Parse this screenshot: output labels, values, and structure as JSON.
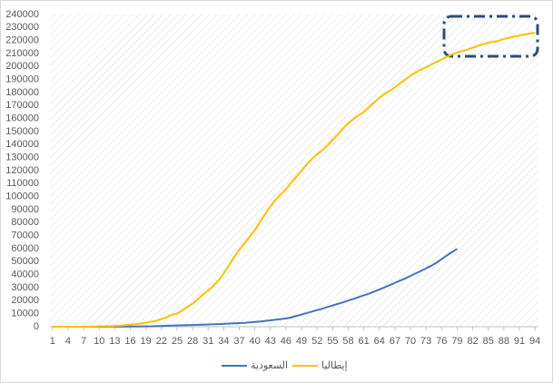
{
  "chart_data": {
    "type": "line",
    "x": [
      1,
      2,
      3,
      4,
      5,
      6,
      7,
      8,
      9,
      10,
      11,
      12,
      13,
      14,
      15,
      16,
      17,
      18,
      19,
      20,
      21,
      22,
      23,
      24,
      25,
      26,
      27,
      28,
      29,
      30,
      31,
      32,
      33,
      34,
      35,
      36,
      37,
      38,
      39,
      40,
      41,
      42,
      43,
      44,
      45,
      46,
      47,
      48,
      49,
      50,
      51,
      52,
      53,
      54,
      55,
      56,
      57,
      58,
      59,
      60,
      61,
      62,
      63,
      64,
      65,
      66,
      67,
      68,
      69,
      70,
      71,
      72,
      73,
      74,
      75,
      76,
      77,
      78,
      79,
      80,
      81,
      82,
      83,
      84,
      85,
      86,
      87,
      88,
      89,
      90,
      91,
      92,
      93,
      94
    ],
    "xlim": [
      0.5,
      94.5
    ],
    "xticks": [
      1,
      4,
      7,
      10,
      13,
      16,
      19,
      22,
      25,
      28,
      31,
      34,
      37,
      40,
      43,
      46,
      49,
      52,
      55,
      58,
      61,
      64,
      67,
      70,
      73,
      76,
      79,
      82,
      85,
      88,
      91,
      94
    ],
    "ylim": [
      0,
      240000
    ],
    "yticks": [
      0,
      10000,
      20000,
      30000,
      40000,
      50000,
      60000,
      70000,
      80000,
      90000,
      100000,
      110000,
      120000,
      130000,
      140000,
      150000,
      160000,
      170000,
      180000,
      190000,
      200000,
      210000,
      220000,
      230000,
      240000
    ],
    "grid": false,
    "legend": "bottom",
    "series": [
      {
        "name": "السعودية",
        "color": "#4472c4",
        "values": [
          1,
          1,
          2,
          5,
          5,
          7,
          11,
          15,
          20,
          21,
          45,
          62,
          86,
          103,
          118,
          133,
          171,
          238,
          274,
          344,
          511,
          562,
          767,
          900,
          1012,
          1104,
          1203,
          1299,
          1453,
          1563,
          1720,
          1885,
          2039,
          2179,
          2402,
          2605,
          2795,
          2932,
          3287,
          3651,
          4033,
          4462,
          4934,
          5369,
          5862,
          6380,
          7142,
          8274,
          9362,
          10484,
          11631,
          12772,
          13930,
          15102,
          16299,
          17522,
          18811,
          20077,
          21402,
          22753,
          24097,
          25459,
          27011,
          28656,
          30251,
          31938,
          33731,
          35432,
          37136,
          39048,
          41014,
          42925,
          44830,
          46869,
          49176,
          52016,
          54752,
          57345,
          59854,
          null,
          null,
          null,
          null,
          null,
          null,
          null,
          null,
          null,
          null,
          null,
          null,
          null,
          null,
          null
        ]
      },
      {
        "name": "إيطاليا",
        "color": "#ffc000",
        "values": [
          3,
          3,
          3,
          3,
          3,
          3,
          20,
          79,
          150,
          227,
          320,
          445,
          650,
          888,
          1128,
          1694,
          2036,
          2502,
          3089,
          3858,
          4636,
          5883,
          7375,
          9172,
          10149,
          12462,
          15113,
          17660,
          21157,
          24747,
          27980,
          31506,
          35713,
          41035,
          47021,
          53578,
          59138,
          63927,
          69176,
          74386,
          80539,
          86498,
          92472,
          97689,
          101739,
          105792,
          110574,
          115242,
          119827,
          124632,
          128948,
          132547,
          135586,
          139422,
          143626,
          147577,
          152271,
          156363,
          159516,
          162488,
          165155,
          168941,
          172434,
          175925,
          178972,
          181228,
          183957,
          187327,
          189973,
          192994,
          195351,
          197675,
          199414,
          201505,
          203591,
          205463,
          207428,
          209328,
          210717,
          211938,
          213013,
          214457,
          215858,
          217185,
          218268,
          219070,
          219814,
          221216,
          222104,
          223096,
          223885,
          224760,
          225435,
          225886
        ]
      }
    ]
  }
}
